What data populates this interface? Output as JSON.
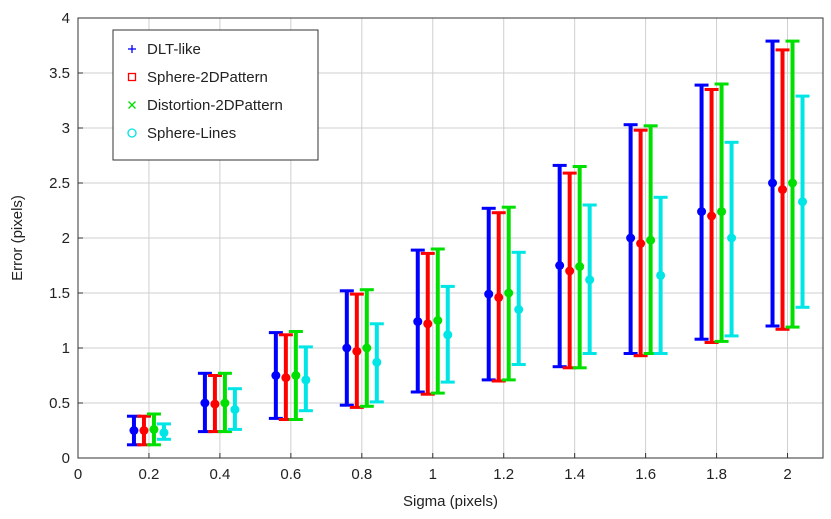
{
  "chart_data": {
    "type": "errorbar",
    "title": "",
    "xlabel": "Sigma (pixels)",
    "ylabel": "Error (pixels)",
    "xlim": [
      0,
      2.1
    ],
    "ylim": [
      0,
      4
    ],
    "xticks": [
      0,
      0.2,
      0.4,
      0.6,
      0.8,
      1,
      1.2,
      1.4,
      1.6,
      1.8,
      2
    ],
    "yticks": [
      0,
      0.5,
      1,
      1.5,
      2,
      2.5,
      3,
      3.5,
      4
    ],
    "grid": true,
    "legend_position": "top-left",
    "x": [
      0.2,
      0.4,
      0.6,
      0.8,
      1,
      1.2,
      1.4,
      1.6,
      1.8,
      2
    ],
    "series": [
      {
        "name": "DLT-like",
        "color": "#0000ff",
        "marker": "+",
        "mean": [
          0.25,
          0.5,
          0.75,
          1.0,
          1.24,
          1.49,
          1.75,
          2.0,
          2.24,
          2.5
        ],
        "lower": [
          0.12,
          0.24,
          0.36,
          0.48,
          0.6,
          0.71,
          0.83,
          0.95,
          1.08,
          1.2
        ],
        "upper": [
          0.38,
          0.77,
          1.14,
          1.52,
          1.89,
          2.27,
          2.66,
          3.03,
          3.39,
          3.79
        ]
      },
      {
        "name": "Sphere-2DPattern",
        "color": "#ff0000",
        "marker": "□",
        "mean": [
          0.25,
          0.49,
          0.73,
          0.97,
          1.22,
          1.46,
          1.7,
          1.95,
          2.2,
          2.44
        ],
        "lower": [
          0.12,
          0.24,
          0.35,
          0.46,
          0.58,
          0.7,
          0.82,
          0.93,
          1.05,
          1.17
        ],
        "upper": [
          0.38,
          0.75,
          1.12,
          1.49,
          1.86,
          2.23,
          2.59,
          2.98,
          3.35,
          3.71
        ]
      },
      {
        "name": "Distortion-2DPattern",
        "color": "#00e000",
        "marker": "x",
        "mean": [
          0.26,
          0.5,
          0.75,
          1.0,
          1.25,
          1.5,
          1.74,
          1.98,
          2.24,
          2.5
        ],
        "lower": [
          0.12,
          0.24,
          0.35,
          0.47,
          0.59,
          0.71,
          0.82,
          0.95,
          1.06,
          1.19
        ],
        "upper": [
          0.4,
          0.77,
          1.15,
          1.53,
          1.9,
          2.28,
          2.65,
          3.02,
          3.4,
          3.79
        ]
      },
      {
        "name": "Sphere-Lines",
        "color": "#00e5e5",
        "marker": "○",
        "mean": [
          0.23,
          0.44,
          0.71,
          0.87,
          1.12,
          1.35,
          1.62,
          1.66,
          2.0,
          2.33
        ],
        "lower": [
          0.17,
          0.26,
          0.43,
          0.51,
          0.69,
          0.85,
          0.95,
          0.95,
          1.11,
          1.37
        ],
        "upper": [
          0.31,
          0.63,
          1.01,
          1.22,
          1.56,
          1.87,
          2.3,
          2.37,
          2.87,
          3.29
        ]
      }
    ]
  }
}
